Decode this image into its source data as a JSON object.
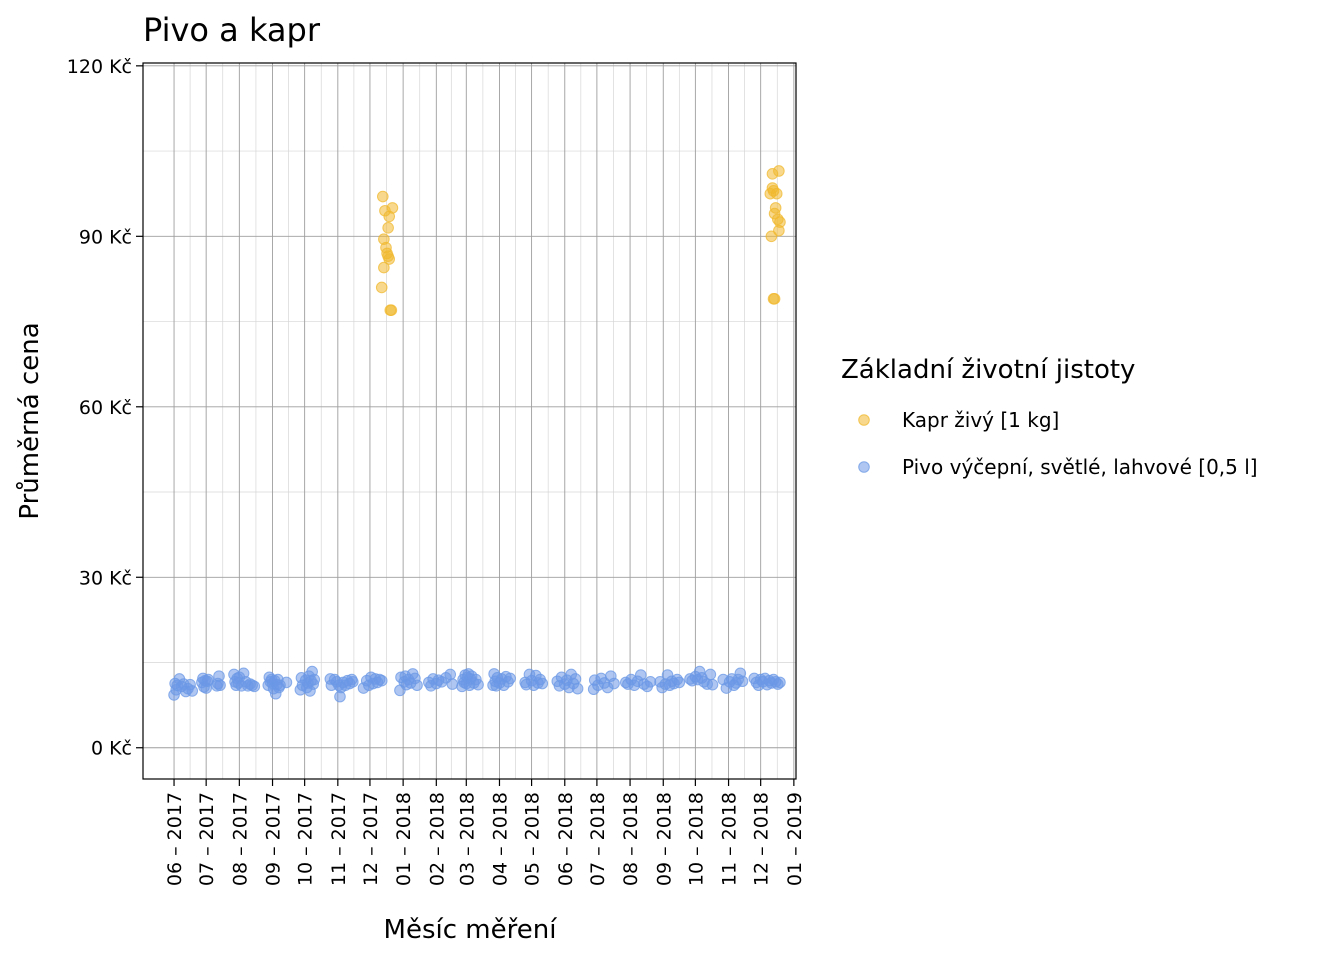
{
  "chart_data": {
    "type": "scatter",
    "title": "Pivo a kapr",
    "xlabel": "Měsíc měření",
    "ylabel": "Průměrná cena",
    "x_tick_labels": [
      "06 – 2017",
      "07 – 2017",
      "08 – 2017",
      "09 – 2017",
      "10 – 2017",
      "11 – 2017",
      "12 – 2017",
      "01 – 2018",
      "02 – 2018",
      "03 – 2018",
      "04 – 2018",
      "05 – 2018",
      "06 – 2018",
      "07 – 2018",
      "08 – 2018",
      "09 – 2018",
      "10 – 2018",
      "11 – 2018",
      "12 – 2018",
      "01 – 2019"
    ],
    "y_tick_labels": [
      "0 Kč",
      "30 Kč",
      "60 Kč",
      "90 Kč",
      "120 Kč"
    ],
    "y_ticks": [
      0,
      30,
      60,
      90,
      120
    ],
    "ylim": [
      -5.5,
      120.5
    ],
    "xlim": [
      "2017-05-03",
      "2019-01-03"
    ],
    "grid": true,
    "legend": {
      "title": "Základní životní jistoty",
      "placement": "right"
    },
    "series": [
      {
        "name": "Kapr živý [1 kg]",
        "color": "#F0B82E",
        "points": [
          [
            "2017-12-12",
            81.0
          ],
          [
            "2017-12-13",
            97.0
          ],
          [
            "2017-12-14",
            84.5
          ],
          [
            "2017-12-14",
            89.5
          ],
          [
            "2017-12-15",
            94.5
          ],
          [
            "2017-12-16",
            88.0
          ],
          [
            "2017-12-17",
            87.0
          ],
          [
            "2017-12-18",
            91.5
          ],
          [
            "2017-12-18",
            86.5
          ],
          [
            "2017-12-19",
            93.5
          ],
          [
            "2017-12-19",
            86.0
          ],
          [
            "2017-12-20",
            77.0
          ],
          [
            "2017-12-21",
            77.0
          ],
          [
            "2017-12-22",
            95.0
          ],
          [
            "2018-12-10",
            97.5
          ],
          [
            "2018-12-11",
            90.0
          ],
          [
            "2018-12-12",
            101.0
          ],
          [
            "2018-12-12",
            98.5
          ],
          [
            "2018-12-13",
            79.0
          ],
          [
            "2018-12-13",
            98.0
          ],
          [
            "2018-12-14",
            79.0
          ],
          [
            "2018-12-14",
            94.0
          ],
          [
            "2018-12-15",
            95.0
          ],
          [
            "2018-12-16",
            97.5
          ],
          [
            "2018-12-17",
            93.0
          ],
          [
            "2018-12-18",
            101.5
          ],
          [
            "2018-12-18",
            91.0
          ],
          [
            "2018-12-19",
            92.5
          ]
        ]
      },
      {
        "name": "Pivo výčepní, světlé, lahvové [0,5 l]",
        "color": "#6B98E6",
        "points": [
          [
            "2017-06-01",
            9.3
          ],
          [
            "2017-06-02",
            11.3
          ],
          [
            "2017-06-03",
            10.2
          ],
          [
            "2017-06-04",
            11.0
          ],
          [
            "2017-06-06",
            12.1
          ],
          [
            "2017-06-08",
            10.8
          ],
          [
            "2017-06-10",
            11.2
          ],
          [
            "2017-06-12",
            9.9
          ],
          [
            "2017-06-14",
            10.4
          ],
          [
            "2017-06-16",
            11.1
          ],
          [
            "2017-06-18",
            10.0
          ],
          [
            "2017-06-27",
            11.5
          ],
          [
            "2017-06-28",
            12.2
          ],
          [
            "2017-06-29",
            10.7
          ],
          [
            "2017-06-30",
            11.8
          ],
          [
            "2017-07-01",
            10.5
          ],
          [
            "2017-07-02",
            11.7
          ],
          [
            "2017-07-03",
            12.0
          ],
          [
            "2017-07-11",
            10.9
          ],
          [
            "2017-07-12",
            11.3
          ],
          [
            "2017-07-13",
            12.6
          ],
          [
            "2017-07-14",
            11.0
          ],
          [
            "2017-07-27",
            12.9
          ],
          [
            "2017-07-28",
            11.6
          ],
          [
            "2017-07-29",
            11.0
          ],
          [
            "2017-07-30",
            12.2
          ],
          [
            "2017-07-31",
            11.4
          ],
          [
            "2017-08-01",
            12.4
          ],
          [
            "2017-08-03",
            10.9
          ],
          [
            "2017-08-05",
            13.1
          ],
          [
            "2017-08-07",
            11.6
          ],
          [
            "2017-08-09",
            10.9
          ],
          [
            "2017-08-11",
            11.2
          ],
          [
            "2017-08-13",
            11.0
          ],
          [
            "2017-08-15",
            10.8
          ],
          [
            "2017-08-28",
            11.0
          ],
          [
            "2017-08-29",
            12.4
          ],
          [
            "2017-08-30",
            11.6
          ],
          [
            "2017-08-31",
            12.0
          ],
          [
            "2017-09-01",
            11.3
          ],
          [
            "2017-09-02",
            10.4
          ],
          [
            "2017-09-03",
            11.8
          ],
          [
            "2017-09-04",
            9.5
          ],
          [
            "2017-09-05",
            11.1
          ],
          [
            "2017-09-06",
            12.0
          ],
          [
            "2017-09-07",
            10.6
          ],
          [
            "2017-09-08",
            11.0
          ],
          [
            "2017-09-14",
            11.5
          ],
          [
            "2017-09-27",
            10.2
          ],
          [
            "2017-09-28",
            12.3
          ],
          [
            "2017-09-29",
            11.0
          ],
          [
            "2017-10-02",
            11.9
          ],
          [
            "2017-10-03",
            10.6
          ],
          [
            "2017-10-04",
            11.4
          ],
          [
            "2017-10-05",
            12.6
          ],
          [
            "2017-10-06",
            10.0
          ],
          [
            "2017-10-07",
            11.8
          ],
          [
            "2017-10-08",
            13.4
          ],
          [
            "2017-10-09",
            11.2
          ],
          [
            "2017-10-10",
            12.0
          ],
          [
            "2017-10-25",
            12.1
          ],
          [
            "2017-10-26",
            11.0
          ],
          [
            "2017-10-29",
            12.0
          ],
          [
            "2017-10-31",
            11.6
          ],
          [
            "2017-11-02",
            11.0
          ],
          [
            "2017-11-03",
            9.0
          ],
          [
            "2017-11-04",
            10.6
          ],
          [
            "2017-11-06",
            11.5
          ],
          [
            "2017-11-08",
            11.0
          ],
          [
            "2017-11-10",
            11.8
          ],
          [
            "2017-11-12",
            11.3
          ],
          [
            "2017-11-14",
            12.0
          ],
          [
            "2017-11-15",
            11.6
          ],
          [
            "2017-11-25",
            10.5
          ],
          [
            "2017-11-28",
            11.8
          ],
          [
            "2017-11-30",
            11.0
          ],
          [
            "2017-12-02",
            12.4
          ],
          [
            "2017-12-04",
            11.3
          ],
          [
            "2017-12-06",
            12.1
          ],
          [
            "2017-12-08",
            11.5
          ],
          [
            "2017-12-10",
            12.0
          ],
          [
            "2017-12-12",
            11.8
          ],
          [
            "2017-12-29",
            10.1
          ],
          [
            "2017-12-30",
            12.4
          ],
          [
            "2018-01-02",
            11.6
          ],
          [
            "2018-01-03",
            12.6
          ],
          [
            "2018-01-04",
            11.1
          ],
          [
            "2018-01-06",
            12.0
          ],
          [
            "2018-01-08",
            11.4
          ],
          [
            "2018-01-10",
            13.0
          ],
          [
            "2018-01-12",
            12.2
          ],
          [
            "2018-01-14",
            11.0
          ],
          [
            "2018-01-25",
            11.5
          ],
          [
            "2018-01-27",
            10.9
          ],
          [
            "2018-01-29",
            12.1
          ],
          [
            "2018-02-01",
            11.3
          ],
          [
            "2018-02-03",
            11.9
          ],
          [
            "2018-02-06",
            11.6
          ],
          [
            "2018-02-10",
            12.3
          ],
          [
            "2018-02-14",
            12.9
          ],
          [
            "2018-02-16",
            11.2
          ],
          [
            "2018-02-25",
            10.8
          ],
          [
            "2018-02-26",
            12.0
          ],
          [
            "2018-02-27",
            11.5
          ],
          [
            "2018-02-28",
            12.8
          ],
          [
            "2018-03-01",
            11.3
          ],
          [
            "2018-03-02",
            12.4
          ],
          [
            "2018-03-03",
            13.0
          ],
          [
            "2018-03-04",
            11.0
          ],
          [
            "2018-03-05",
            12.1
          ],
          [
            "2018-03-06",
            12.6
          ],
          [
            "2018-03-08",
            11.4
          ],
          [
            "2018-03-10",
            12.0
          ],
          [
            "2018-03-12",
            11.1
          ],
          [
            "2018-03-26",
            11.0
          ],
          [
            "2018-03-27",
            13.0
          ],
          [
            "2018-03-28",
            11.7
          ],
          [
            "2018-03-29",
            10.9
          ],
          [
            "2018-03-30",
            12.3
          ],
          [
            "2018-04-01",
            11.4
          ],
          [
            "2018-04-03",
            12.1
          ],
          [
            "2018-04-05",
            11.0
          ],
          [
            "2018-04-07",
            12.5
          ],
          [
            "2018-04-09",
            11.6
          ],
          [
            "2018-04-11",
            12.2
          ],
          [
            "2018-04-25",
            11.5
          ],
          [
            "2018-04-26",
            11.1
          ],
          [
            "2018-04-29",
            12.9
          ],
          [
            "2018-05-01",
            11.8
          ],
          [
            "2018-05-03",
            11.0
          ],
          [
            "2018-05-05",
            12.7
          ],
          [
            "2018-05-07",
            11.4
          ],
          [
            "2018-05-09",
            12.0
          ],
          [
            "2018-05-11",
            11.3
          ],
          [
            "2018-05-25",
            11.7
          ],
          [
            "2018-05-27",
            10.9
          ],
          [
            "2018-05-29",
            12.4
          ],
          [
            "2018-06-01",
            11.2
          ],
          [
            "2018-06-03",
            11.9
          ],
          [
            "2018-06-05",
            10.6
          ],
          [
            "2018-06-07",
            12.9
          ],
          [
            "2018-06-09",
            11.3
          ],
          [
            "2018-06-11",
            12.1
          ],
          [
            "2018-06-13",
            10.4
          ],
          [
            "2018-06-28",
            10.3
          ],
          [
            "2018-06-29",
            11.9
          ],
          [
            "2018-07-02",
            11.0
          ],
          [
            "2018-07-05",
            12.2
          ],
          [
            "2018-07-08",
            11.4
          ],
          [
            "2018-07-11",
            10.6
          ],
          [
            "2018-07-14",
            12.6
          ],
          [
            "2018-07-17",
            11.3
          ],
          [
            "2018-07-28",
            11.5
          ],
          [
            "2018-07-30",
            11.2
          ],
          [
            "2018-08-02",
            12.0
          ],
          [
            "2018-08-05",
            11.0
          ],
          [
            "2018-08-08",
            11.7
          ],
          [
            "2018-08-11",
            12.8
          ],
          [
            "2018-08-14",
            11.2
          ],
          [
            "2018-08-17",
            10.8
          ],
          [
            "2018-08-20",
            11.6
          ],
          [
            "2018-08-29",
            11.6
          ],
          [
            "2018-08-31",
            10.6
          ],
          [
            "2018-09-03",
            11.2
          ],
          [
            "2018-09-05",
            12.8
          ],
          [
            "2018-09-07",
            11.0
          ],
          [
            "2018-09-09",
            11.7
          ],
          [
            "2018-09-11",
            11.3
          ],
          [
            "2018-09-14",
            12.0
          ],
          [
            "2018-09-16",
            11.5
          ],
          [
            "2018-09-26",
            12.1
          ],
          [
            "2018-09-28",
            11.8
          ],
          [
            "2018-10-01",
            12.5
          ],
          [
            "2018-10-03",
            12.0
          ],
          [
            "2018-10-05",
            13.4
          ],
          [
            "2018-10-07",
            12.3
          ],
          [
            "2018-10-09",
            11.6
          ],
          [
            "2018-10-12",
            11.2
          ],
          [
            "2018-10-15",
            12.9
          ],
          [
            "2018-10-17",
            11.1
          ],
          [
            "2018-10-27",
            12.0
          ],
          [
            "2018-10-30",
            10.5
          ],
          [
            "2018-11-02",
            11.6
          ],
          [
            "2018-11-04",
            12.1
          ],
          [
            "2018-11-06",
            11.0
          ],
          [
            "2018-11-08",
            11.4
          ],
          [
            "2018-11-10",
            12.0
          ],
          [
            "2018-11-12",
            13.1
          ],
          [
            "2018-11-14",
            11.7
          ],
          [
            "2018-11-25",
            12.2
          ],
          [
            "2018-11-27",
            11.5
          ],
          [
            "2018-11-29",
            11.0
          ],
          [
            "2018-12-01",
            12.0
          ],
          [
            "2018-12-03",
            11.6
          ],
          [
            "2018-12-05",
            12.2
          ],
          [
            "2018-12-07",
            11.1
          ],
          [
            "2018-12-09",
            11.8
          ],
          [
            "2018-12-11",
            11.4
          ],
          [
            "2018-12-13",
            12.0
          ],
          [
            "2018-12-15",
            11.6
          ],
          [
            "2018-12-17",
            11.2
          ],
          [
            "2018-12-19",
            11.5
          ]
        ]
      }
    ]
  }
}
